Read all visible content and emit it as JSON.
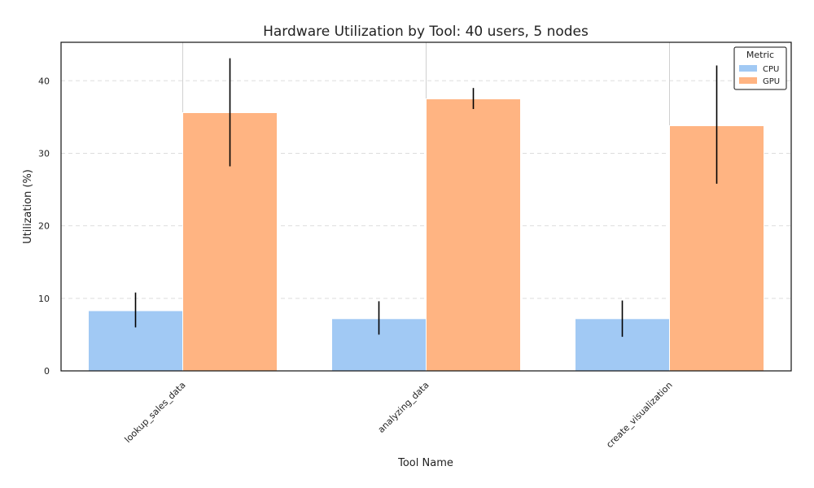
{
  "chart_data": {
    "type": "bar",
    "title": "Hardware Utilization by Tool: 40 users, 5 nodes",
    "xlabel": "Tool Name",
    "ylabel": "Utilization (%)",
    "categories": [
      "lookup_sales_data",
      "analyzing_data",
      "create_visualization"
    ],
    "series": [
      {
        "name": "CPU",
        "color": "#a1c9f4",
        "values": [
          8.3,
          7.2,
          7.2
        ],
        "error_low": [
          6.0,
          5.0,
          4.7
        ],
        "error_high": [
          10.8,
          9.6,
          9.7
        ]
      },
      {
        "name": "GPU",
        "color": "#ffb482",
        "values": [
          35.6,
          37.5,
          33.8
        ],
        "error_low": [
          28.2,
          36.1,
          25.8
        ],
        "error_high": [
          43.1,
          39.0,
          42.1
        ]
      }
    ],
    "ylim": [
      0,
      45.3
    ],
    "yticks": [
      "0",
      "10",
      "20",
      "30",
      "40"
    ],
    "grid": "y-dashed",
    "legend": {
      "title": "Metric",
      "position": "top-right"
    }
  }
}
